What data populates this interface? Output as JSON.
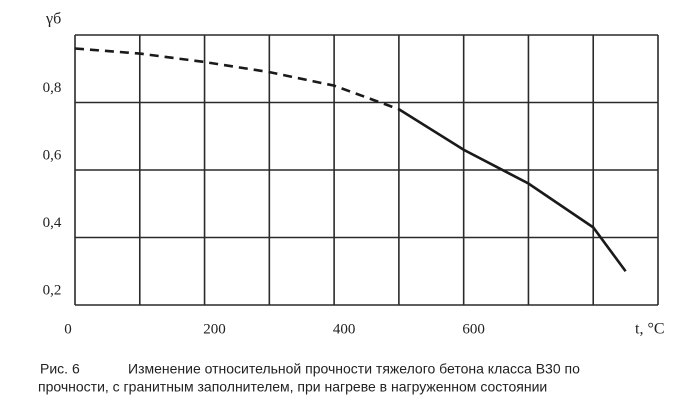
{
  "chart_data": {
    "type": "line",
    "y_label": "γб",
    "x_label": "t, °C",
    "xlim": [
      0,
      900
    ],
    "xticks": [
      0,
      200,
      400,
      600
    ],
    "xgrid": [
      0,
      100,
      200,
      300,
      400,
      500,
      600,
      700,
      800,
      900
    ],
    "ylim": [
      0.2,
      1.0
    ],
    "yticks": [
      {
        "value": 0.2,
        "label": "0,2"
      },
      {
        "value": 0.4,
        "label": "0,4"
      },
      {
        "value": 0.6,
        "label": "0,6"
      },
      {
        "value": 0.8,
        "label": "0,8"
      }
    ],
    "grid": true,
    "series": [
      {
        "color": "#1a1a1a",
        "style": "dashed",
        "x": [
          0,
          100,
          200,
          300,
          400,
          500
        ],
        "values": [
          0.96,
          0.945,
          0.92,
          0.89,
          0.85,
          0.78
        ]
      },
      {
        "color": "#1a1a1a",
        "style": "solid",
        "x": [
          500,
          600,
          700,
          800,
          850
        ],
        "values": [
          0.78,
          0.66,
          0.56,
          0.43,
          0.3
        ]
      }
    ],
    "figure_label": "Рис. 6",
    "caption": [
      "Изменение относительной прочности тяжелого бетона класса В30 по",
      "прочности, с гранитным заполнителем, при нагреве в нагруженном состоянии"
    ]
  }
}
